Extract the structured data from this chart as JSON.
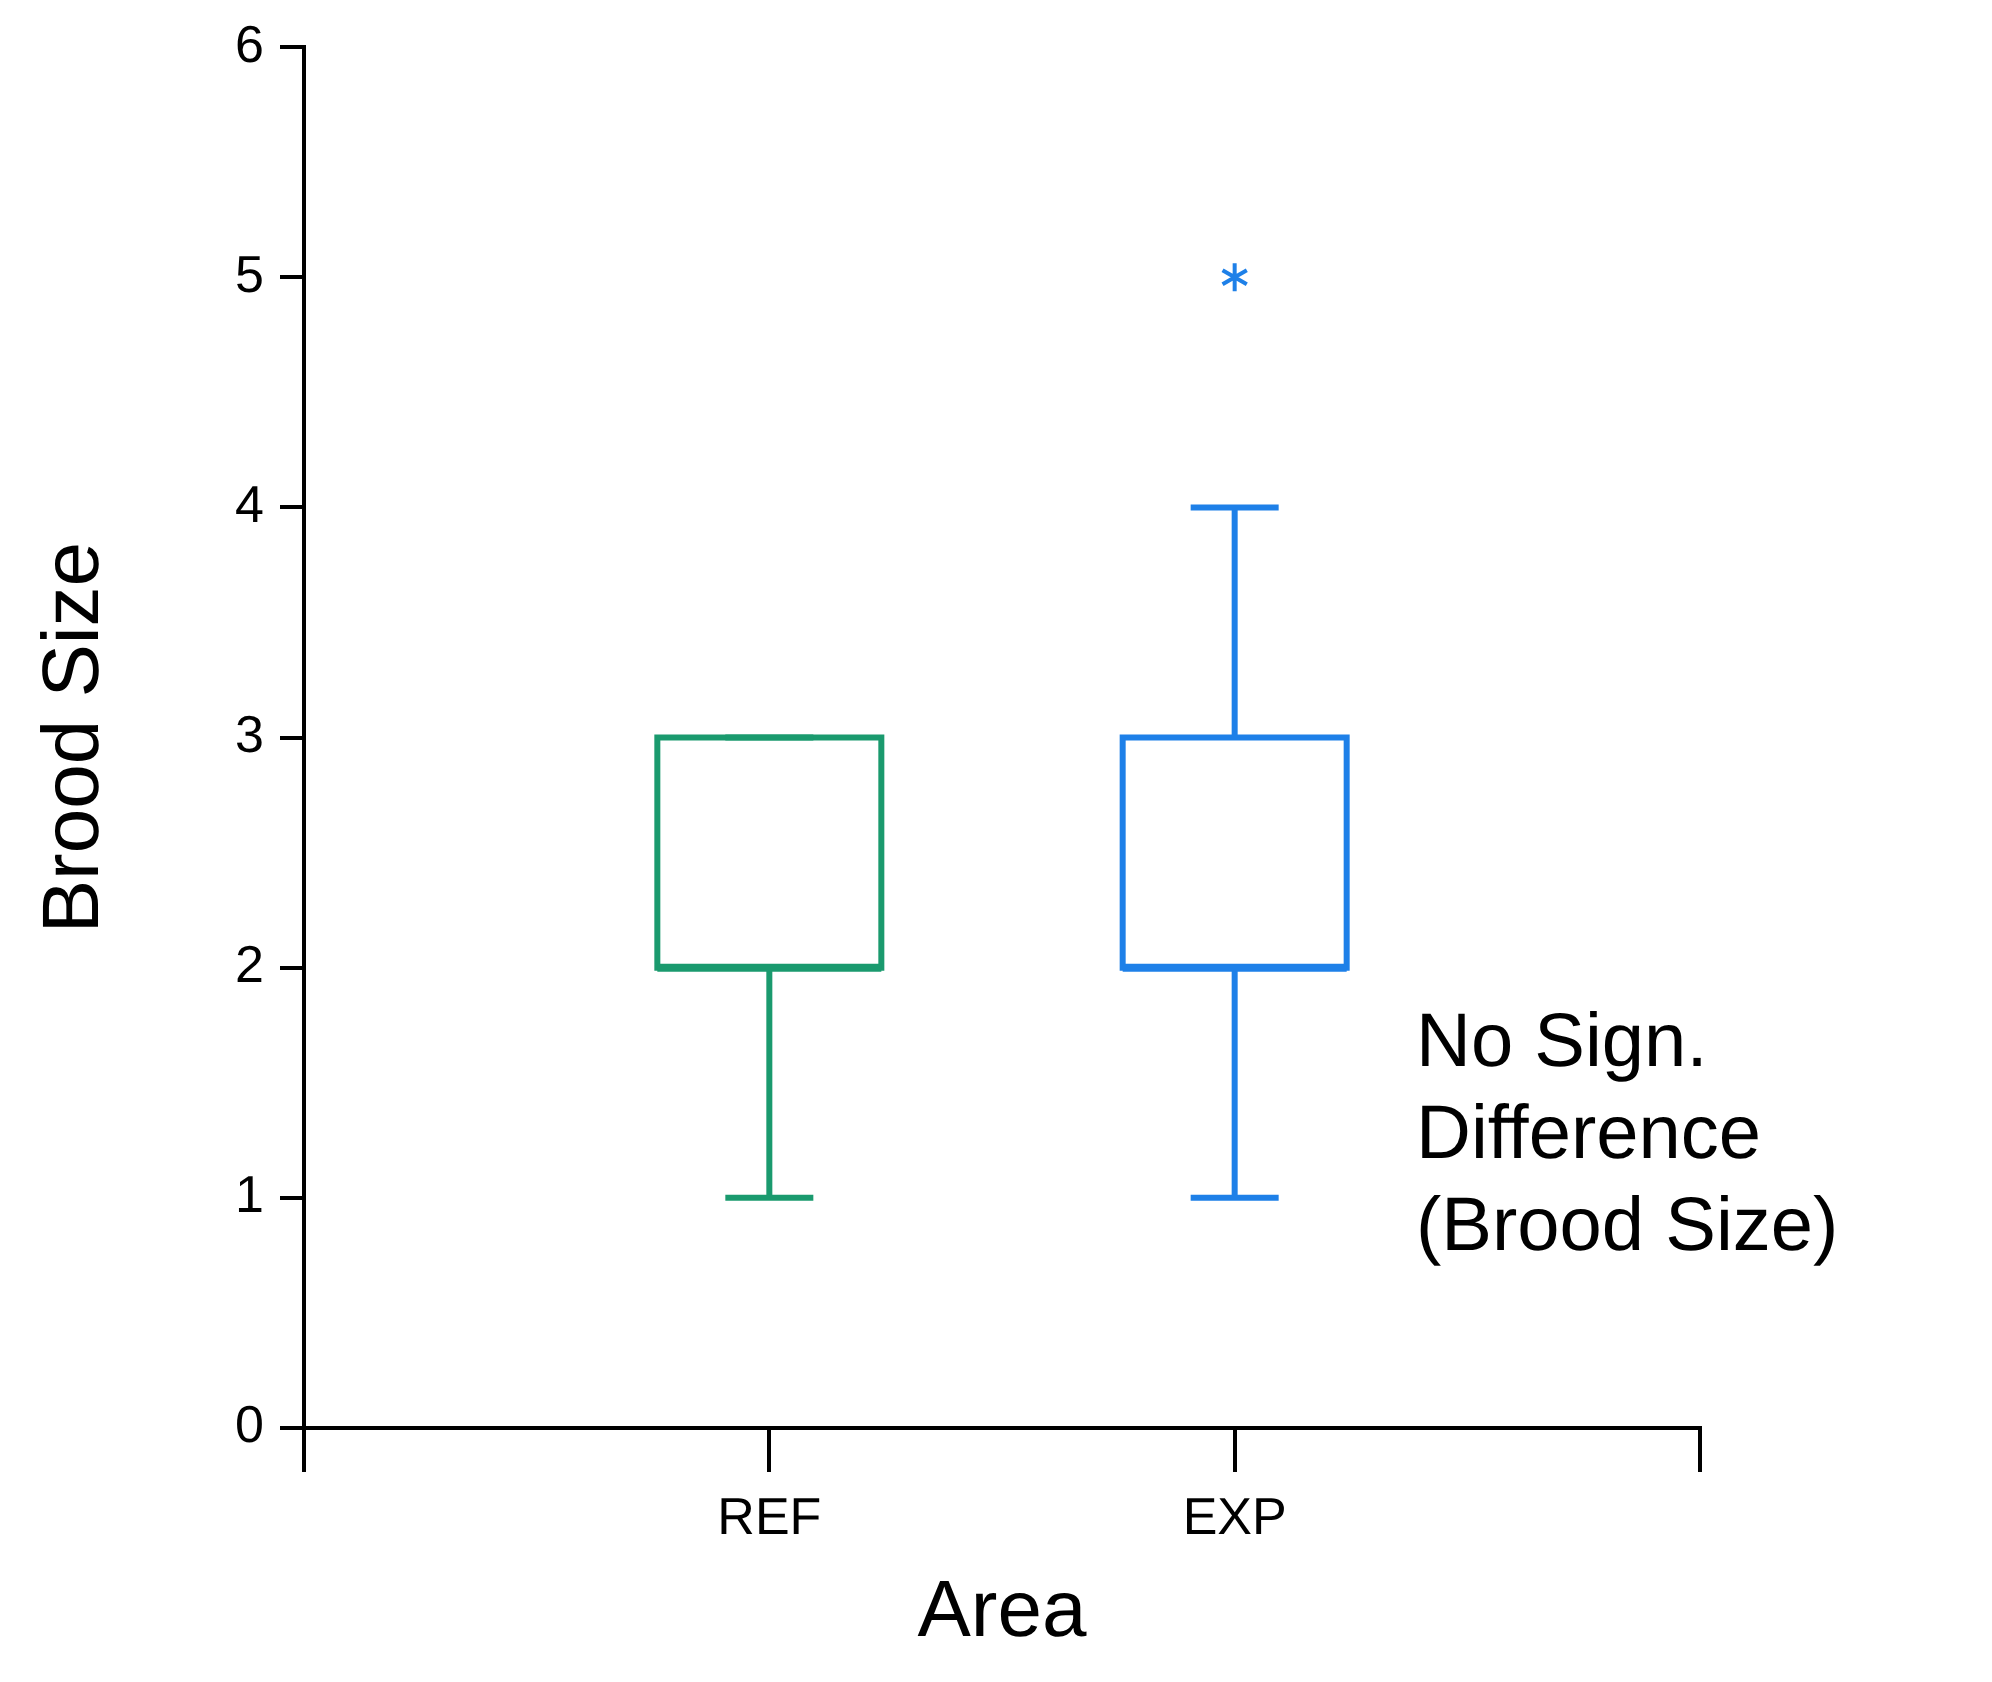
{
  "chart_data": {
    "type": "box",
    "xlabel": "Area",
    "ylabel": "Brood Size",
    "categories": [
      "REF",
      "EXP"
    ],
    "series": [
      {
        "color": "#1a9a6e",
        "boxes": [
          {
            "low": 1,
            "q1": 2,
            "median": 2,
            "q3": 3,
            "high": 3
          },
          null
        ]
      },
      {
        "color": "#1e80e8",
        "boxes": [
          null,
          {
            "low": 1,
            "q1": 2,
            "median": 2,
            "q3": 3,
            "high": 4,
            "outliers": [
              5
            ]
          }
        ]
      }
    ],
    "ylim": [
      0,
      6
    ],
    "yticks": [
      0,
      1,
      2,
      3,
      4,
      5,
      6
    ],
    "marker": "star",
    "grid": false,
    "legend": false,
    "annotations": [
      "No Sign.\nDifference\n(Brood Size)"
    ]
  }
}
